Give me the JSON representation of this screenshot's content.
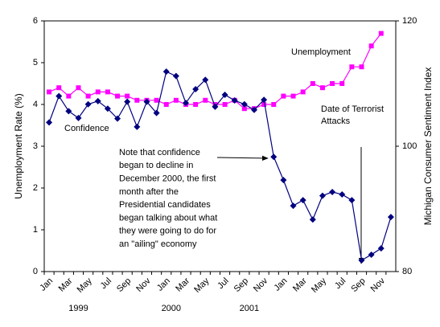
{
  "chart_data": {
    "type": "line",
    "categories": [
      "Jan",
      null,
      "Mar",
      null,
      "May",
      null,
      "Jul",
      null,
      "Sep",
      null,
      "Nov",
      null,
      "Jan",
      null,
      "Mar",
      null,
      "May",
      null,
      "Jul",
      null,
      "Sep",
      null,
      "Nov",
      null,
      "Jan",
      null,
      "Mar",
      null,
      "May",
      null,
      "Jul",
      null,
      "Sep",
      null,
      "Nov",
      null
    ],
    "year_labels": [
      "1999",
      "2000",
      "2001"
    ],
    "ylabel": "Unemployment Rate (%)",
    "y2label": "Michigan Consumer Sentiment Index",
    "ylim": [
      0,
      6
    ],
    "yticks": [
      0,
      1,
      2,
      3,
      4,
      5,
      6
    ],
    "y2lim": [
      80,
      120
    ],
    "y2ticks": [
      80,
      100,
      120
    ],
    "series": [
      {
        "name": "Unemployment",
        "color": "#ff00ff",
        "marker": "square",
        "values": [
          4.3,
          4.4,
          4.2,
          4.4,
          4.2,
          4.3,
          4.3,
          4.2,
          4.2,
          4.1,
          4.1,
          4.1,
          4.0,
          4.1,
          4.0,
          4.0,
          4.1,
          4.0,
          4.0,
          4.1,
          3.9,
          3.9,
          4.0,
          4.0,
          4.2,
          4.2,
          4.3,
          4.5,
          4.4,
          4.5,
          4.5,
          4.9,
          4.9,
          5.4,
          5.7,
          null
        ]
      },
      {
        "name": "Confidence",
        "color": "#000080",
        "marker": "diamond",
        "axis": "y2",
        "values": [
          103.8,
          108.0,
          105.6,
          104.5,
          106.7,
          107.2,
          106.0,
          104.4,
          107.1,
          103.1,
          107.1,
          105.3,
          111.9,
          111.2,
          106.9,
          109.1,
          110.6,
          106.3,
          108.2,
          107.3,
          106.7,
          105.8,
          107.4,
          98.3,
          94.6,
          90.5,
          91.4,
          88.3,
          92.1,
          92.7,
          92.3,
          91.4,
          81.8,
          82.7,
          83.7,
          88.7
        ]
      }
    ],
    "annotations": {
      "note": [
        "Note that confidence",
        "began to decline in",
        "December 2000, the first",
        "month after the",
        "Presidential candidates",
        "began talking about what",
        "they were going to do for",
        "an \"ailing\" economy"
      ],
      "terror": [
        "Date of Terrorist",
        "Attacks"
      ]
    }
  }
}
